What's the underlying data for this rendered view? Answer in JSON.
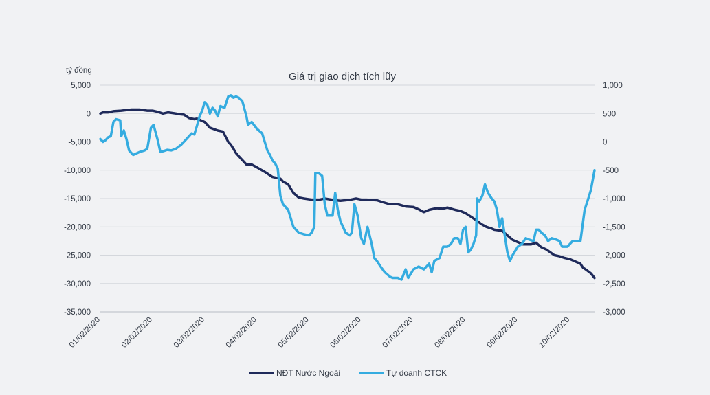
{
  "chart_data": {
    "type": "line",
    "title": "Giá trị giao dịch tích lũy",
    "ylabel_left": "tỷ đồng",
    "xlabel": "",
    "x_ticks": [
      "01/02/2020",
      "02/02/2020",
      "03/02/2020",
      "04/02/2020",
      "05/02/2020",
      "06/02/2020",
      "07/02/2020",
      "08/02/2020",
      "09/02/2020",
      "10/02/2020"
    ],
    "y_left": {
      "range": [
        -35000,
        5000
      ],
      "ticks": [
        5000,
        0,
        -5000,
        -10000,
        -15000,
        -20000,
        -25000,
        -30000,
        -35000
      ],
      "tick_labels": [
        "5,000",
        "0",
        "-5,000",
        "-10,000",
        "-15,000",
        "-20,000",
        "-25,000",
        "-30,000",
        "-35,000"
      ]
    },
    "y_right": {
      "range": [
        -3000,
        1000
      ],
      "ticks": [
        1000,
        500,
        0,
        -500,
        -1000,
        -1500,
        -2000,
        -2500,
        -3000
      ],
      "tick_labels": [
        "1,000",
        "500",
        "0",
        "-500",
        "-1,000",
        "-1,500",
        "-2,000",
        "-2,500",
        "-3,000"
      ]
    },
    "x_range": [
      0,
      9.47
    ],
    "grid": true,
    "legend_position": "bottom-center",
    "series": [
      {
        "name": "NĐT Nước Ngoài",
        "axis": "left",
        "color": "#1f2a5a",
        "points": [
          [
            0,
            0
          ],
          [
            0.05,
            200
          ],
          [
            0.15,
            200
          ],
          [
            0.25,
            400
          ],
          [
            0.4,
            500
          ],
          [
            0.5,
            600
          ],
          [
            0.6,
            700
          ],
          [
            0.75,
            700
          ],
          [
            0.9,
            500
          ],
          [
            1.0,
            500
          ],
          [
            1.1,
            300
          ],
          [
            1.2,
            0
          ],
          [
            1.3,
            200
          ],
          [
            1.45,
            0
          ],
          [
            1.5,
            -100
          ],
          [
            1.6,
            -200
          ],
          [
            1.7,
            -800
          ],
          [
            1.8,
            -1000
          ],
          [
            1.85,
            -900
          ],
          [
            1.95,
            -1300
          ],
          [
            2.0,
            -1500
          ],
          [
            2.1,
            -2500
          ],
          [
            2.25,
            -3000
          ],
          [
            2.35,
            -3200
          ],
          [
            2.45,
            -5000
          ],
          [
            2.5,
            -5500
          ],
          [
            2.55,
            -6200
          ],
          [
            2.6,
            -7000
          ],
          [
            2.7,
            -8000
          ],
          [
            2.8,
            -9000
          ],
          [
            2.9,
            -9000
          ],
          [
            3.0,
            -9500
          ],
          [
            3.15,
            -10300
          ],
          [
            3.3,
            -11200
          ],
          [
            3.45,
            -11500
          ],
          [
            3.5,
            -12000
          ],
          [
            3.6,
            -12500
          ],
          [
            3.7,
            -14000
          ],
          [
            3.8,
            -14800
          ],
          [
            3.9,
            -15000
          ],
          [
            4.05,
            -15200
          ],
          [
            4.2,
            -15200
          ],
          [
            4.3,
            -15000
          ],
          [
            4.5,
            -15300
          ],
          [
            4.6,
            -15400
          ],
          [
            4.7,
            -15300
          ],
          [
            4.8,
            -15200
          ],
          [
            4.9,
            -15000
          ],
          [
            5.0,
            -15200
          ],
          [
            5.1,
            -15200
          ],
          [
            5.3,
            -15300
          ],
          [
            5.4,
            -15600
          ],
          [
            5.55,
            -16000
          ],
          [
            5.7,
            -16000
          ],
          [
            5.85,
            -16400
          ],
          [
            6.0,
            -16500
          ],
          [
            6.1,
            -16900
          ],
          [
            6.2,
            -17400
          ],
          [
            6.3,
            -17000
          ],
          [
            6.45,
            -16700
          ],
          [
            6.55,
            -16800
          ],
          [
            6.65,
            -16600
          ],
          [
            6.8,
            -17000
          ],
          [
            6.9,
            -17200
          ],
          [
            7.0,
            -17600
          ],
          [
            7.1,
            -18200
          ],
          [
            7.2,
            -18800
          ],
          [
            7.3,
            -19500
          ],
          [
            7.4,
            -20000
          ],
          [
            7.5,
            -20300
          ],
          [
            7.55,
            -20500
          ],
          [
            7.7,
            -20700
          ],
          [
            7.8,
            -21500
          ],
          [
            7.9,
            -22300
          ],
          [
            8.0,
            -22700
          ],
          [
            8.1,
            -23100
          ],
          [
            8.25,
            -23100
          ],
          [
            8.35,
            -22800
          ],
          [
            8.45,
            -23600
          ],
          [
            8.55,
            -24000
          ],
          [
            8.7,
            -25000
          ],
          [
            8.8,
            -25200
          ],
          [
            8.9,
            -25500
          ],
          [
            9.0,
            -25700
          ],
          [
            9.1,
            -26100
          ],
          [
            9.2,
            -26500
          ],
          [
            9.25,
            -27200
          ],
          [
            9.3,
            -27500
          ],
          [
            9.4,
            -28200
          ],
          [
            9.47,
            -29000
          ]
        ]
      },
      {
        "name": "Tự doanh CTCK",
        "axis": "right",
        "color": "#35ace0",
        "points": [
          [
            0,
            50
          ],
          [
            0.05,
            0
          ],
          [
            0.1,
            30
          ],
          [
            0.15,
            80
          ],
          [
            0.2,
            100
          ],
          [
            0.25,
            350
          ],
          [
            0.3,
            400
          ],
          [
            0.38,
            380
          ],
          [
            0.4,
            100
          ],
          [
            0.45,
            200
          ],
          [
            0.5,
            50
          ],
          [
            0.55,
            -150
          ],
          [
            0.63,
            -230
          ],
          [
            0.75,
            -180
          ],
          [
            0.85,
            -150
          ],
          [
            0.9,
            -120
          ],
          [
            0.97,
            250
          ],
          [
            1.02,
            300
          ],
          [
            1.1,
            30
          ],
          [
            1.15,
            -180
          ],
          [
            1.22,
            -160
          ],
          [
            1.28,
            -140
          ],
          [
            1.36,
            -150
          ],
          [
            1.45,
            -120
          ],
          [
            1.55,
            -50
          ],
          [
            1.65,
            50
          ],
          [
            1.75,
            150
          ],
          [
            1.8,
            130
          ],
          [
            1.85,
            280
          ],
          [
            1.9,
            450
          ],
          [
            1.95,
            550
          ],
          [
            2.0,
            700
          ],
          [
            2.05,
            650
          ],
          [
            2.1,
            500
          ],
          [
            2.15,
            600
          ],
          [
            2.2,
            550
          ],
          [
            2.25,
            450
          ],
          [
            2.3,
            630
          ],
          [
            2.38,
            600
          ],
          [
            2.45,
            800
          ],
          [
            2.5,
            820
          ],
          [
            2.55,
            780
          ],
          [
            2.6,
            800
          ],
          [
            2.65,
            780
          ],
          [
            2.72,
            720
          ],
          [
            2.8,
            450
          ],
          [
            2.83,
            300
          ],
          [
            2.9,
            350
          ],
          [
            3.0,
            230
          ],
          [
            3.1,
            150
          ],
          [
            3.15,
            0
          ],
          [
            3.2,
            -150
          ],
          [
            3.25,
            -230
          ],
          [
            3.3,
            -330
          ],
          [
            3.35,
            -380
          ],
          [
            3.4,
            -470
          ],
          [
            3.45,
            -950
          ],
          [
            3.5,
            -1100
          ],
          [
            3.6,
            -1200
          ],
          [
            3.7,
            -1500
          ],
          [
            3.8,
            -1600
          ],
          [
            3.9,
            -1630
          ],
          [
            4.0,
            -1650
          ],
          [
            4.05,
            -1600
          ],
          [
            4.1,
            -1500
          ],
          [
            4.12,
            -550
          ],
          [
            4.18,
            -550
          ],
          [
            4.25,
            -600
          ],
          [
            4.3,
            -1100
          ],
          [
            4.35,
            -1300
          ],
          [
            4.45,
            -1300
          ],
          [
            4.5,
            -900
          ],
          [
            4.55,
            -1200
          ],
          [
            4.6,
            -1400
          ],
          [
            4.7,
            -1600
          ],
          [
            4.78,
            -1650
          ],
          [
            4.82,
            -1600
          ],
          [
            4.87,
            -1100
          ],
          [
            4.93,
            -1300
          ],
          [
            5.0,
            -1700
          ],
          [
            5.05,
            -1800
          ],
          [
            5.12,
            -1500
          ],
          [
            5.2,
            -1800
          ],
          [
            5.25,
            -2050
          ],
          [
            5.3,
            -2100
          ],
          [
            5.37,
            -2200
          ],
          [
            5.45,
            -2300
          ],
          [
            5.55,
            -2380
          ],
          [
            5.6,
            -2400
          ],
          [
            5.7,
            -2400
          ],
          [
            5.77,
            -2430
          ],
          [
            5.85,
            -2250
          ],
          [
            5.9,
            -2400
          ],
          [
            6.0,
            -2250
          ],
          [
            6.1,
            -2200
          ],
          [
            6.2,
            -2250
          ],
          [
            6.3,
            -2150
          ],
          [
            6.35,
            -2300
          ],
          [
            6.4,
            -2100
          ],
          [
            6.5,
            -2050
          ],
          [
            6.57,
            -1850
          ],
          [
            6.65,
            -1850
          ],
          [
            6.72,
            -1800
          ],
          [
            6.78,
            -1700
          ],
          [
            6.85,
            -1700
          ],
          [
            6.9,
            -1800
          ],
          [
            6.95,
            -1550
          ],
          [
            7.0,
            -1500
          ],
          [
            7.05,
            -1950
          ],
          [
            7.1,
            -1900
          ],
          [
            7.15,
            -1800
          ],
          [
            7.2,
            -1650
          ],
          [
            7.22,
            -1000
          ],
          [
            7.26,
            -1050
          ],
          [
            7.32,
            -950
          ],
          [
            7.37,
            -750
          ],
          [
            7.43,
            -900
          ],
          [
            7.5,
            -1000
          ],
          [
            7.55,
            -1050
          ],
          [
            7.6,
            -1200
          ],
          [
            7.65,
            -1500
          ],
          [
            7.7,
            -1350
          ],
          [
            7.75,
            -1650
          ],
          [
            7.8,
            -1950
          ],
          [
            7.85,
            -2100
          ],
          [
            7.9,
            -2000
          ],
          [
            8.0,
            -1850
          ],
          [
            8.08,
            -1800
          ],
          [
            8.15,
            -1700
          ],
          [
            8.2,
            -1720
          ],
          [
            8.3,
            -1750
          ],
          [
            8.35,
            -1550
          ],
          [
            8.4,
            -1550
          ],
          [
            8.45,
            -1600
          ],
          [
            8.52,
            -1650
          ],
          [
            8.58,
            -1750
          ],
          [
            8.65,
            -1700
          ],
          [
            8.72,
            -1720
          ],
          [
            8.8,
            -1750
          ],
          [
            8.85,
            -1850
          ],
          [
            8.95,
            -1850
          ],
          [
            9.05,
            -1750
          ],
          [
            9.2,
            -1750
          ],
          [
            9.28,
            -1200
          ],
          [
            9.35,
            -1000
          ],
          [
            9.4,
            -850
          ],
          [
            9.47,
            -500
          ]
        ]
      }
    ]
  }
}
